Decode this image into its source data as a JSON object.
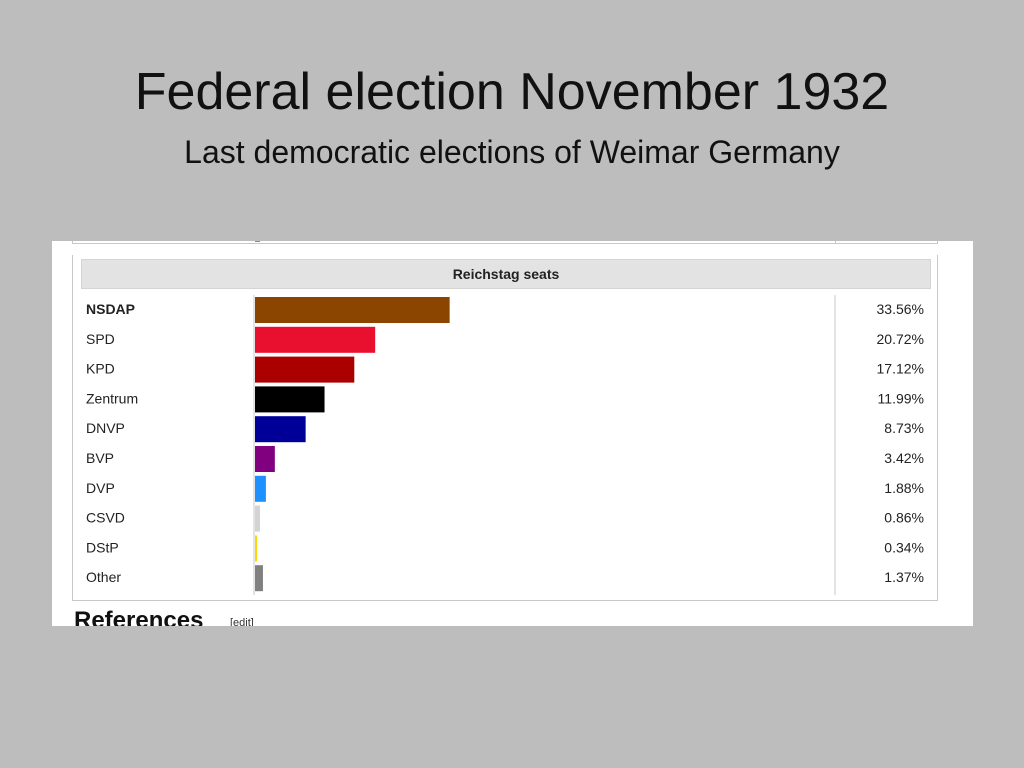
{
  "slide": {
    "title": "Federal election November 1932",
    "subtitle": "Last democratic elections of Weimar Germany"
  },
  "table": {
    "header": "Reichstag seats"
  },
  "chart_data": {
    "type": "bar",
    "orientation": "horizontal",
    "title": "Reichstag seats",
    "categories": [
      "NSDAP",
      "SPD",
      "KPD",
      "Zentrum",
      "DNVP",
      "BVP",
      "DVP",
      "CSVD",
      "DStP",
      "Other"
    ],
    "values": [
      33.56,
      20.72,
      17.12,
      11.99,
      8.73,
      3.42,
      1.88,
      0.86,
      0.34,
      1.37
    ],
    "value_labels": [
      "33.56%",
      "20.72%",
      "17.12%",
      "11.99%",
      "8.73%",
      "3.42%",
      "1.88%",
      "0.86%",
      "0.34%",
      "1.37%"
    ],
    "colors": [
      "#8b4500",
      "#e8102e",
      "#aa0000",
      "#000000",
      "#000099",
      "#800080",
      "#1e90ff",
      "#d3d3d3",
      "#ffd700",
      "#808080"
    ],
    "bold_categories": [
      "NSDAP"
    ],
    "xlim": [
      0,
      100
    ]
  },
  "footer": {
    "references_heading": "References",
    "edit_link": "[edit]"
  }
}
